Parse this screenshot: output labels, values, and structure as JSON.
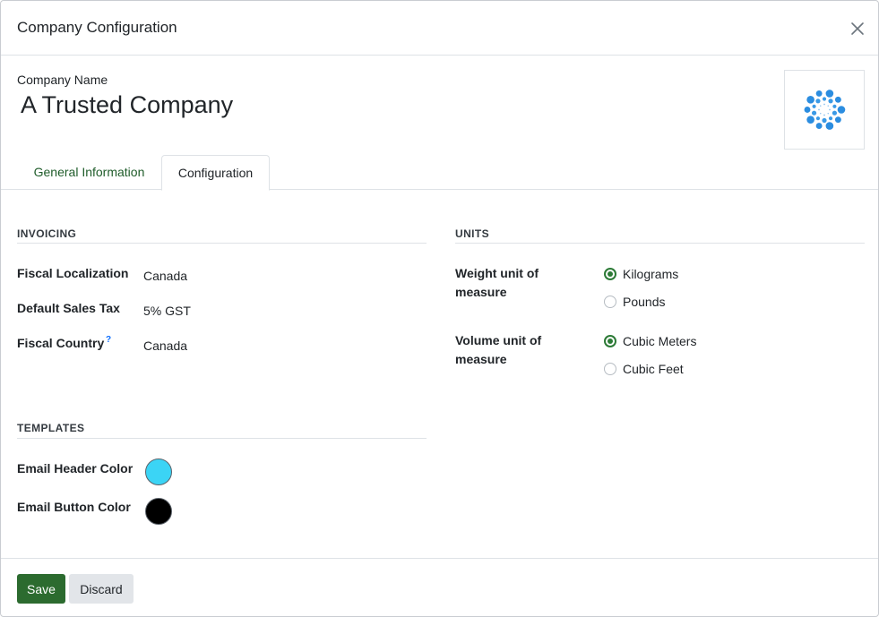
{
  "modal": {
    "title": "Company Configuration",
    "close_icon": "close-icon"
  },
  "company": {
    "label": "Company Name",
    "name": "A Trusted Company",
    "logo_icon": "company-logo"
  },
  "tabs": [
    {
      "label": "General Information",
      "active": false
    },
    {
      "label": "Configuration",
      "active": true
    }
  ],
  "invoicing": {
    "title": "INVOICING",
    "fields": [
      {
        "label": "Fiscal Localization",
        "value": "Canada"
      },
      {
        "label": "Default Sales Tax",
        "value": "5% GST"
      },
      {
        "label": "Fiscal Country",
        "value": "Canada",
        "help": "?"
      }
    ]
  },
  "units": {
    "title": "UNITS",
    "weight": {
      "label": "Weight unit of measure",
      "options": [
        {
          "label": "Kilograms",
          "checked": true
        },
        {
          "label": "Pounds",
          "checked": false
        }
      ]
    },
    "volume": {
      "label": "Volume unit of measure",
      "options": [
        {
          "label": "Cubic Meters",
          "checked": true
        },
        {
          "label": "Cubic Feet",
          "checked": false
        }
      ]
    }
  },
  "templates": {
    "title": "TEMPLATES",
    "fields": [
      {
        "label": "Email Header Color",
        "color": "#3bd4f5"
      },
      {
        "label": "Email Button Color",
        "color": "#000000"
      }
    ]
  },
  "footer": {
    "save_label": "Save",
    "discard_label": "Discard"
  },
  "colors": {
    "accent_green": "#2c6b2f",
    "tab_link_green": "#1f5c2a",
    "radio_checked": "#2c7a36"
  }
}
